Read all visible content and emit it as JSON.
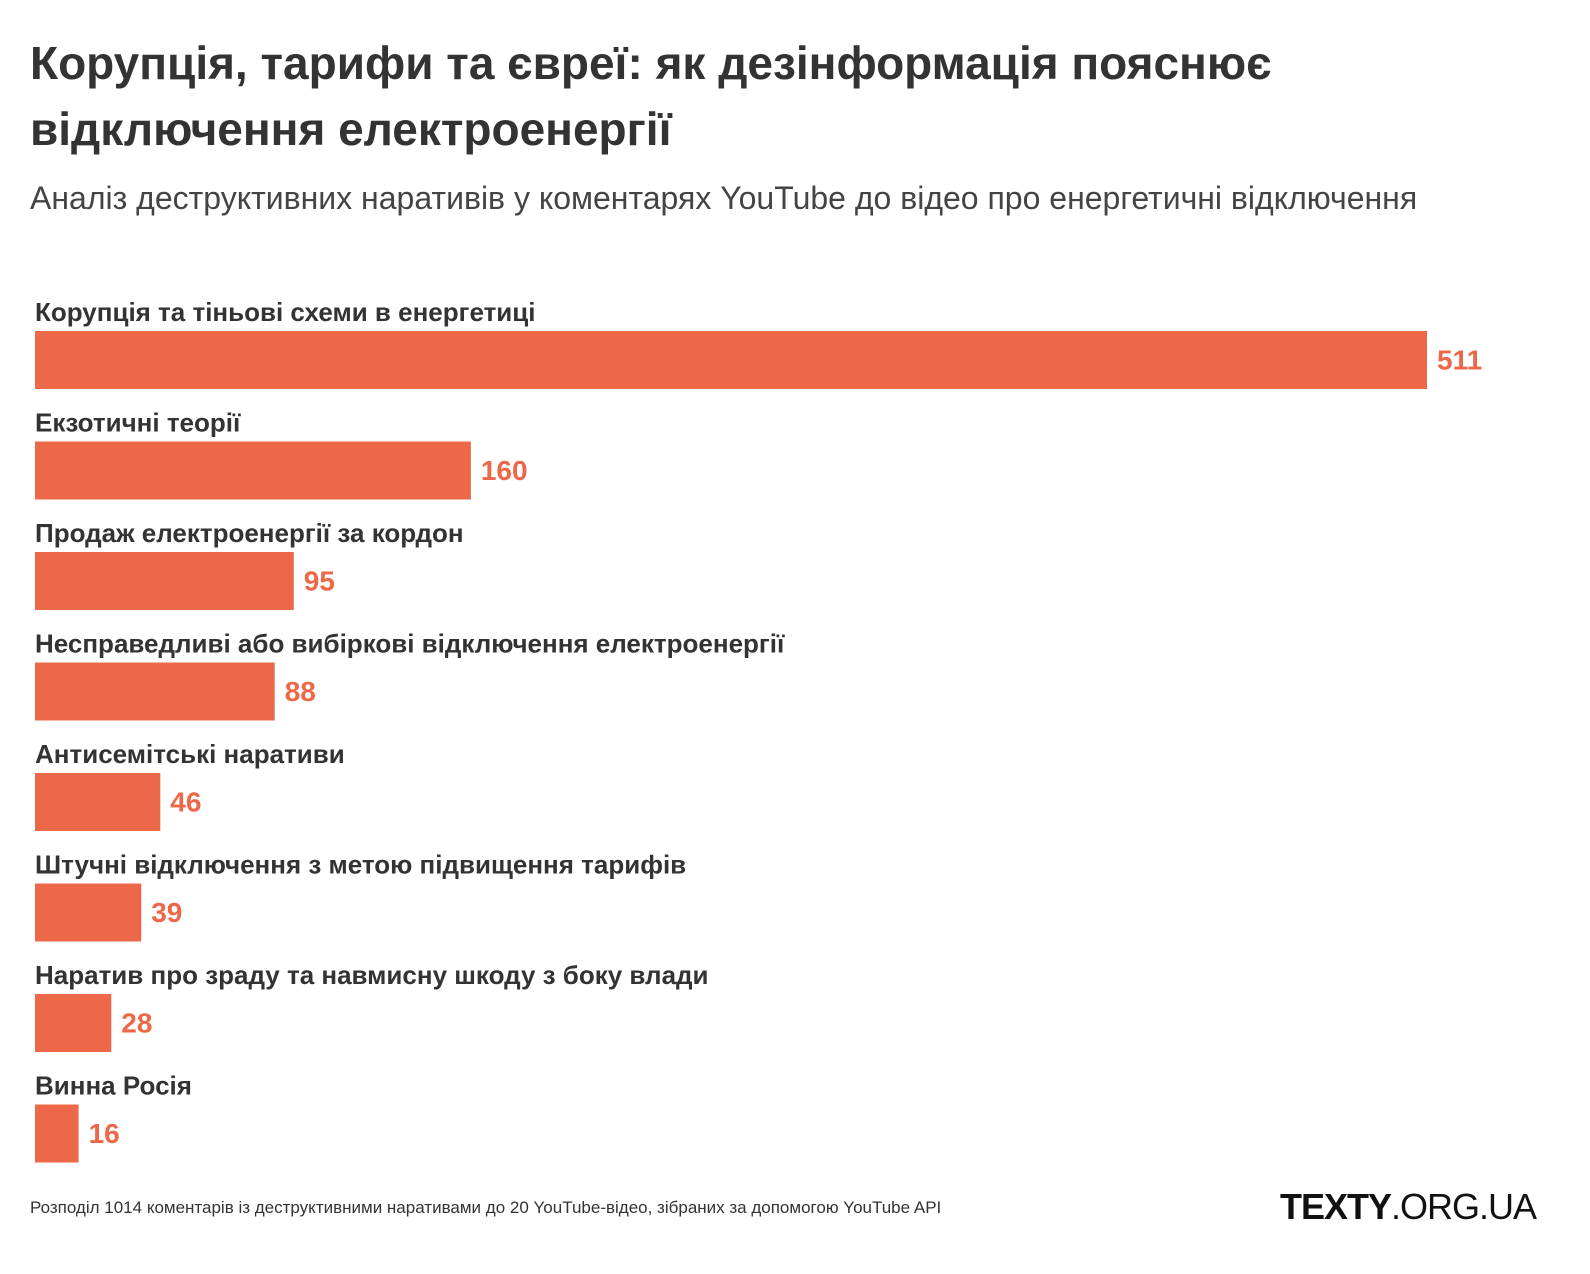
{
  "chart_data": {
    "type": "bar",
    "title": "Корупція, тарифи та євреї: як дезінформація пояснює відключення електроенергії",
    "subtitle": "Аналіз деструктивних наративів у коментарях YouTube до відео про енергетичні відключення",
    "categories": [
      "Корупція та тіньові схеми в енергетиці",
      "Екзотичні теорії",
      "Продаж електроенергії за кордон",
      "Несправедливі або вибіркові відключення електроенергії",
      "Антисемітські наративи",
      "Штучні відключення з метою підвищення тарифів",
      "Наратив про зраду та навмисну шкоду з боку влади",
      "Винна Росія"
    ],
    "values": [
      511,
      160,
      95,
      88,
      46,
      39,
      28,
      16
    ],
    "color": "#ec6848",
    "note": "Розподіл 1014 коментарів із деструктивними наративами до 20 YouTube-відео, зібраних за допомогою YouTube API",
    "logo": {
      "bold": "TEXTY",
      "rest": ".ORG.UA"
    }
  }
}
